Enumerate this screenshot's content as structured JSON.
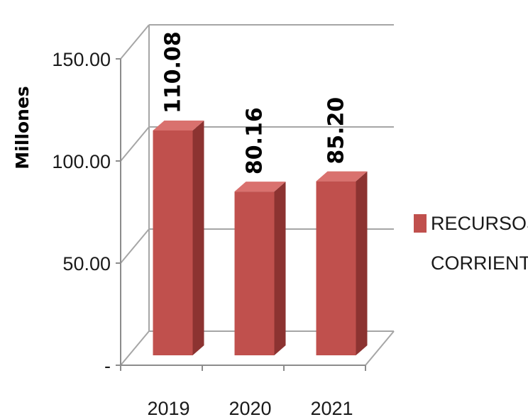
{
  "chart_data": {
    "type": "bar",
    "categories": [
      "2019",
      "2020",
      "2021"
    ],
    "series": [
      {
        "name": "RECURSOS CORRIENT..",
        "values": [
          110.08,
          80.16,
          85.2
        ]
      }
    ],
    "data_labels": [
      "110.08",
      "80.16",
      "85.20"
    ],
    "title": "",
    "xlabel": "",
    "ylabel": "Millones",
    "ylim": [
      0,
      150
    ],
    "y_ticks": [
      {
        "value": 0,
        "label": "-"
      },
      {
        "value": 50,
        "label": "50.00"
      },
      {
        "value": 100,
        "label": "100.00"
      },
      {
        "value": 150,
        "label": "150.00"
      }
    ],
    "grid": true,
    "style": "3d-column",
    "legend_position": "right",
    "legend_lines": [
      "RECURSOS",
      "CORRIENT.."
    ],
    "colors": {
      "bar_front": "#c0504d",
      "bar_side": "#8c3331",
      "bar_top": "#d9716e",
      "grid": "#a6a6a6",
      "axis": "#8c8c8c"
    }
  }
}
